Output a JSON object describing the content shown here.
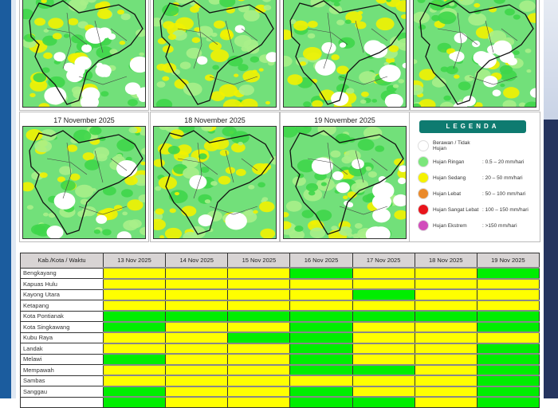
{
  "maps": {
    "row1": [
      {
        "label": "",
        "white": 0.35,
        "yellow": 0.3
      },
      {
        "label": "",
        "white": 0.05,
        "yellow": 0.45
      },
      {
        "label": "",
        "white": 0.15,
        "yellow": 0.3
      },
      {
        "label": "",
        "white": 0.25,
        "yellow": 0.3
      }
    ],
    "row2": [
      {
        "label": "17 November 2025",
        "white": 0.08,
        "yellow": 0.3
      },
      {
        "label": "18 November 2025",
        "white": 0.05,
        "yellow": 0.45
      },
      {
        "label": "19 November 2025",
        "white": 0.25,
        "yellow": 0.2
      }
    ]
  },
  "legend": {
    "title": "LEGENDA",
    "items": [
      {
        "name": "Berawan / Tidak Hujan",
        "range": "",
        "color": "#ffffff"
      },
      {
        "name": "Hujan Ringan",
        "range": ": 0.5 – 20 mm/hari",
        "color": "#7be67b"
      },
      {
        "name": "Hujan Sedang",
        "range": ": 20 – 50 mm/hari",
        "color": "#f5f200"
      },
      {
        "name": "Hujan Lebat",
        "range": ": 50 – 100 mm/hari",
        "color": "#ea8a2a"
      },
      {
        "name": "Hujan Sangat Lebat",
        "range": ": 100 – 150 mm/hari",
        "color": "#e8141b"
      },
      {
        "name": "Hujan Ekstrem",
        "range": ": >150 mm/hari",
        "color": "#d14dbb"
      }
    ]
  },
  "colors": {
    "G": "#00ee00",
    "Y": "#ffff00"
  },
  "table": {
    "header": "Kab./Kota / Waktu",
    "dates": [
      "13 Nov 2025",
      "14 Nov 2025",
      "15 Nov 2025",
      "16 Nov 2025",
      "17 Nov 2025",
      "18 Nov 2025",
      "19 Nov 2025"
    ],
    "rows": [
      {
        "name": "Bengkayang",
        "cells": [
          "Y",
          "Y",
          "Y",
          "G",
          "Y",
          "Y",
          "G"
        ]
      },
      {
        "name": "Kapuas Hulu",
        "cells": [
          "Y",
          "Y",
          "Y",
          "Y",
          "Y",
          "Y",
          "Y"
        ]
      },
      {
        "name": "Kayong Utara",
        "cells": [
          "Y",
          "Y",
          "Y",
          "Y",
          "G",
          "Y",
          "Y"
        ]
      },
      {
        "name": "Ketapang",
        "cells": [
          "Y",
          "Y",
          "Y",
          "Y",
          "Y",
          "Y",
          "Y"
        ]
      },
      {
        "name": "Kota Pontianak",
        "cells": [
          "G",
          "G",
          "G",
          "G",
          "G",
          "G",
          "G"
        ]
      },
      {
        "name": "Kota Singkawang",
        "cells": [
          "G",
          "Y",
          "Y",
          "G",
          "Y",
          "Y",
          "G"
        ]
      },
      {
        "name": "Kubu Raya",
        "cells": [
          "Y",
          "Y",
          "G",
          "G",
          "Y",
          "Y",
          "Y"
        ]
      },
      {
        "name": "Landak",
        "cells": [
          "Y",
          "Y",
          "Y",
          "G",
          "Y",
          "Y",
          "G"
        ]
      },
      {
        "name": "Melawi",
        "cells": [
          "G",
          "Y",
          "Y",
          "G",
          "Y",
          "Y",
          "G"
        ]
      },
      {
        "name": "Mempawah",
        "cells": [
          "Y",
          "Y",
          "Y",
          "G",
          "G",
          "Y",
          "G"
        ]
      },
      {
        "name": "Sambas",
        "cells": [
          "Y",
          "Y",
          "Y",
          "Y",
          "Y",
          "Y",
          "G"
        ]
      },
      {
        "name": "Sanggau",
        "cells": [
          "G",
          "Y",
          "Y",
          "G",
          "Y",
          "Y",
          "G"
        ]
      },
      {
        "name": "",
        "cells": [
          "G",
          "Y",
          "Y",
          "G",
          "G",
          "Y",
          "G"
        ]
      }
    ]
  }
}
